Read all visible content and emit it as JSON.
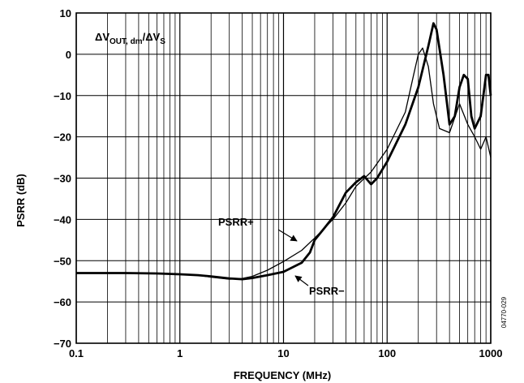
{
  "chart_data": {
    "type": "line",
    "xlabel": "FREQUENCY (MHz)",
    "ylabel": "PSRR (dB)",
    "x_scale": "log",
    "xlim": [
      0.1,
      1000
    ],
    "ylim": [
      -70,
      10
    ],
    "x_ticks": [
      "0.1",
      "1",
      "10",
      "100",
      "1000"
    ],
    "y_ticks": [
      "10",
      "0",
      "−10",
      "−20",
      "−30",
      "−40",
      "−50",
      "−60",
      "−70"
    ],
    "grid": true,
    "annotation": {
      "delta1": "ΔV",
      "sub1": "OUT, dm",
      "slash": "/",
      "delta2": "ΔV",
      "sub2": "S"
    },
    "figure_code": "04770-029",
    "series": [
      {
        "name": "PSRR+",
        "points": [
          [
            0.1,
            -53
          ],
          [
            0.3,
            -53
          ],
          [
            0.6,
            -53.1
          ],
          [
            1,
            -53.2
          ],
          [
            1.5,
            -53.5
          ],
          [
            2,
            -54
          ],
          [
            3,
            -54.5
          ],
          [
            4,
            -54.3
          ],
          [
            5,
            -53.8
          ],
          [
            7,
            -52.3
          ],
          [
            10,
            -50.2
          ],
          [
            15,
            -47.5
          ],
          [
            20,
            -44.5
          ],
          [
            30,
            -40
          ],
          [
            40,
            -36
          ],
          [
            50,
            -32
          ],
          [
            70,
            -28.5
          ],
          [
            100,
            -23
          ],
          [
            150,
            -14
          ],
          [
            180,
            -5
          ],
          [
            200,
            0
          ],
          [
            220,
            1.5
          ],
          [
            250,
            -3
          ],
          [
            280,
            -12
          ],
          [
            320,
            -18
          ],
          [
            400,
            -19
          ],
          [
            500,
            -12
          ],
          [
            600,
            -17
          ],
          [
            700,
            -20
          ],
          [
            800,
            -23
          ],
          [
            900,
            -20
          ],
          [
            1000,
            -25
          ]
        ]
      },
      {
        "name": "PSRR−",
        "points": [
          [
            0.1,
            -53
          ],
          [
            0.3,
            -53
          ],
          [
            0.6,
            -53.1
          ],
          [
            1,
            -53.3
          ],
          [
            1.5,
            -53.5
          ],
          [
            2,
            -53.8
          ],
          [
            3,
            -54.3
          ],
          [
            4,
            -54.5
          ],
          [
            5,
            -54.2
          ],
          [
            7,
            -53.5
          ],
          [
            10,
            -52.7
          ],
          [
            15,
            -50.5
          ],
          [
            18,
            -48
          ],
          [
            20,
            -45
          ],
          [
            25,
            -42
          ],
          [
            30,
            -39.5
          ],
          [
            40,
            -33.5
          ],
          [
            50,
            -31
          ],
          [
            60,
            -29.5
          ],
          [
            70,
            -31.5
          ],
          [
            80,
            -30
          ],
          [
            100,
            -26
          ],
          [
            150,
            -17
          ],
          [
            200,
            -8
          ],
          [
            250,
            2
          ],
          [
            280,
            7.5
          ],
          [
            300,
            6
          ],
          [
            350,
            -5
          ],
          [
            400,
            -17
          ],
          [
            450,
            -15
          ],
          [
            500,
            -8
          ],
          [
            550,
            -5
          ],
          [
            600,
            -6
          ],
          [
            650,
            -15
          ],
          [
            700,
            -18
          ],
          [
            800,
            -15
          ],
          [
            900,
            -5
          ],
          [
            950,
            -5
          ],
          [
            1000,
            -10
          ]
        ]
      }
    ],
    "series_labels": [
      {
        "series": 0,
        "text": "PSRR+",
        "at": [
          5.2,
          -45.5
        ]
      },
      {
        "series": 1,
        "text": "PSRR−",
        "at": [
          16.5,
          -56
        ]
      }
    ]
  }
}
